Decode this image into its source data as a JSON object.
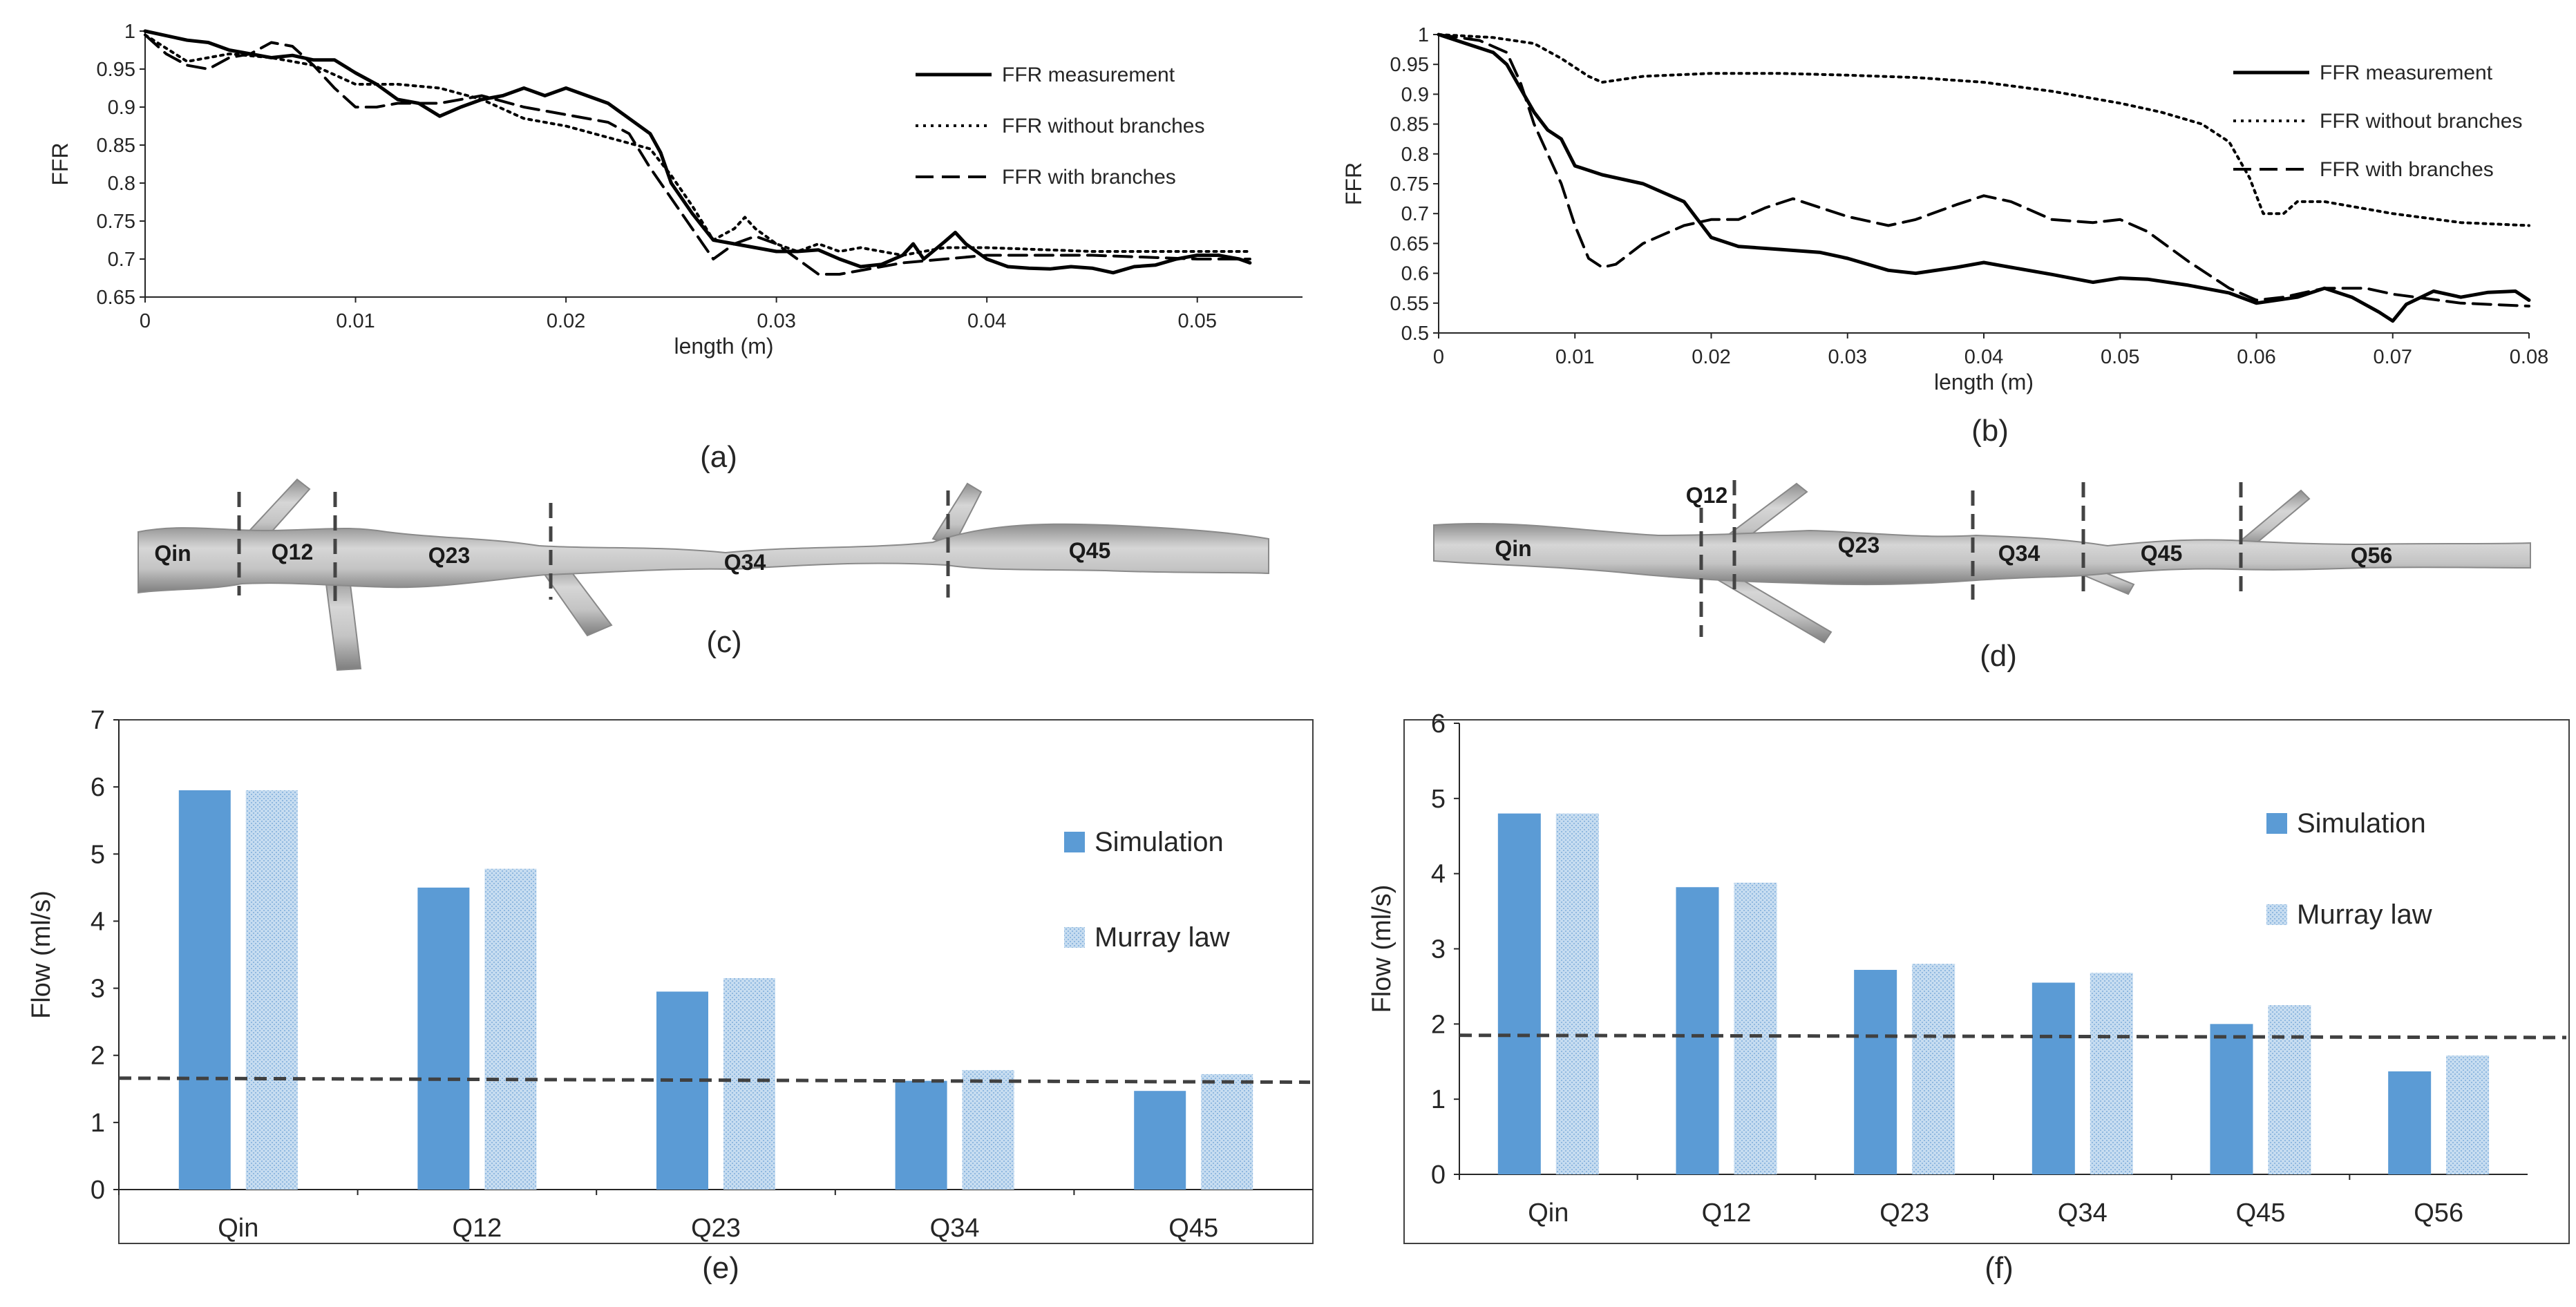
{
  "chart_data": [
    {
      "id": "a",
      "type": "line",
      "panel_label": "(a)",
      "title": "",
      "xlabel": "length (m)",
      "ylabel": "FFR",
      "xlim": [
        0,
        0.055
      ],
      "ylim": [
        0.65,
        1
      ],
      "xticks": [
        "0",
        "0.01",
        "0.02",
        "0.03",
        "0.04",
        "0.05"
      ],
      "yticks": [
        "0.65",
        "0.7",
        "0.75",
        "0.8",
        "0.85",
        "0.9",
        "0.95",
        "1"
      ],
      "grid": false,
      "legend_position": "top-right",
      "series": [
        {
          "name": "FFR measurement",
          "style": "solid",
          "x": [
            0,
            0.002,
            0.003,
            0.004,
            0.005,
            0.006,
            0.007,
            0.008,
            0.009,
            0.01,
            0.011,
            0.012,
            0.013,
            0.014,
            0.015,
            0.016,
            0.017,
            0.018,
            0.019,
            0.02,
            0.021,
            0.022,
            0.023,
            0.024,
            0.0245,
            0.025,
            0.026,
            0.027,
            0.028,
            0.029,
            0.03,
            0.031,
            0.032,
            0.033,
            0.034,
            0.035,
            0.036,
            0.0365,
            0.037,
            0.038,
            0.0385,
            0.039,
            0.04,
            0.041,
            0.042,
            0.043,
            0.044,
            0.045,
            0.046,
            0.047,
            0.048,
            0.049,
            0.05,
            0.051,
            0.052,
            0.0525
          ],
          "y": [
            1,
            0.988,
            0.985,
            0.975,
            0.97,
            0.965,
            0.968,
            0.962,
            0.962,
            0.945,
            0.93,
            0.91,
            0.905,
            0.888,
            0.9,
            0.91,
            0.915,
            0.925,
            0.915,
            0.925,
            0.915,
            0.905,
            0.885,
            0.865,
            0.84,
            0.8,
            0.76,
            0.725,
            0.72,
            0.715,
            0.71,
            0.71,
            0.712,
            0.7,
            0.69,
            0.693,
            0.705,
            0.72,
            0.7,
            0.723,
            0.735,
            0.72,
            0.7,
            0.69,
            0.688,
            0.687,
            0.69,
            0.688,
            0.682,
            0.69,
            0.692,
            0.7,
            0.705,
            0.705,
            0.7,
            0.695
          ]
        },
        {
          "name": "FFR without branches",
          "style": "dotted",
          "x": [
            0,
            0.002,
            0.004,
            0.006,
            0.008,
            0.01,
            0.012,
            0.014,
            0.016,
            0.018,
            0.02,
            0.022,
            0.024,
            0.025,
            0.026,
            0.027,
            0.028,
            0.0285,
            0.029,
            0.03,
            0.031,
            0.032,
            0.033,
            0.034,
            0.035,
            0.036,
            0.037,
            0.038,
            0.04,
            0.045,
            0.05,
            0.0525
          ],
          "y": [
            0.995,
            0.96,
            0.97,
            0.965,
            0.955,
            0.93,
            0.93,
            0.925,
            0.91,
            0.885,
            0.875,
            0.86,
            0.845,
            0.81,
            0.77,
            0.725,
            0.74,
            0.755,
            0.74,
            0.72,
            0.71,
            0.72,
            0.71,
            0.715,
            0.71,
            0.705,
            0.71,
            0.715,
            0.715,
            0.71,
            0.71,
            0.71
          ]
        },
        {
          "name": "FFR with branches",
          "style": "dashed",
          "x": [
            0,
            0.001,
            0.002,
            0.003,
            0.004,
            0.005,
            0.006,
            0.007,
            0.008,
            0.009,
            0.01,
            0.011,
            0.012,
            0.014,
            0.016,
            0.018,
            0.02,
            0.022,
            0.023,
            0.024,
            0.025,
            0.026,
            0.027,
            0.028,
            0.029,
            0.03,
            0.031,
            0.032,
            0.033,
            0.034,
            0.035,
            0.036,
            0.038,
            0.04,
            0.045,
            0.05,
            0.0525
          ],
          "y": [
            0.995,
            0.97,
            0.955,
            0.95,
            0.965,
            0.97,
            0.985,
            0.98,
            0.955,
            0.925,
            0.9,
            0.9,
            0.905,
            0.905,
            0.915,
            0.9,
            0.89,
            0.88,
            0.865,
            0.82,
            0.78,
            0.74,
            0.7,
            0.72,
            0.73,
            0.72,
            0.7,
            0.68,
            0.68,
            0.685,
            0.69,
            0.695,
            0.7,
            0.705,
            0.705,
            0.7,
            0.7
          ]
        }
      ]
    },
    {
      "id": "b",
      "type": "line",
      "panel_label": "(b)",
      "title": "",
      "xlabel": "length (m)",
      "ylabel": "FFR",
      "xlim": [
        0,
        0.08
      ],
      "ylim": [
        0.5,
        1
      ],
      "xticks": [
        "0",
        "0.01",
        "0.02",
        "0.03",
        "0.04",
        "0.05",
        "0.06",
        "0.07",
        "0.08"
      ],
      "yticks": [
        "0.5",
        "0.55",
        "0.6",
        "0.65",
        "0.7",
        "0.75",
        "0.8",
        "0.85",
        "0.9",
        "0.95",
        "1"
      ],
      "grid": false,
      "legend_position": "top-right",
      "series": [
        {
          "name": "FFR measurement",
          "style": "solid",
          "x": [
            0,
            0.002,
            0.004,
            0.005,
            0.006,
            0.007,
            0.008,
            0.009,
            0.01,
            0.012,
            0.015,
            0.018,
            0.02,
            0.022,
            0.025,
            0.028,
            0.03,
            0.033,
            0.035,
            0.038,
            0.04,
            0.042,
            0.045,
            0.048,
            0.05,
            0.052,
            0.055,
            0.058,
            0.06,
            0.063,
            0.065,
            0.067,
            0.069,
            0.07,
            0.071,
            0.073,
            0.075,
            0.077,
            0.079,
            0.08
          ],
          "y": [
            1,
            0.985,
            0.97,
            0.95,
            0.91,
            0.87,
            0.84,
            0.825,
            0.78,
            0.765,
            0.75,
            0.72,
            0.66,
            0.645,
            0.64,
            0.635,
            0.625,
            0.605,
            0.6,
            0.61,
            0.618,
            0.61,
            0.598,
            0.585,
            0.592,
            0.59,
            0.58,
            0.567,
            0.55,
            0.56,
            0.575,
            0.56,
            0.535,
            0.52,
            0.548,
            0.57,
            0.56,
            0.568,
            0.57,
            0.555
          ]
        },
        {
          "name": "FFR without branches",
          "style": "dotted",
          "x": [
            0,
            0.004,
            0.007,
            0.009,
            0.011,
            0.012,
            0.015,
            0.02,
            0.025,
            0.03,
            0.035,
            0.04,
            0.045,
            0.05,
            0.053,
            0.056,
            0.058,
            0.0595,
            0.0605,
            0.062,
            0.063,
            0.065,
            0.07,
            0.075,
            0.08
          ],
          "y": [
            1,
            0.995,
            0.985,
            0.96,
            0.93,
            0.92,
            0.93,
            0.935,
            0.935,
            0.932,
            0.928,
            0.92,
            0.905,
            0.885,
            0.87,
            0.85,
            0.82,
            0.76,
            0.7,
            0.7,
            0.72,
            0.72,
            0.7,
            0.685,
            0.68
          ]
        },
        {
          "name": "FFR with branches",
          "style": "dashed",
          "x": [
            0,
            0.003,
            0.005,
            0.006,
            0.007,
            0.008,
            0.009,
            0.01,
            0.011,
            0.012,
            0.013,
            0.015,
            0.018,
            0.02,
            0.022,
            0.024,
            0.026,
            0.028,
            0.03,
            0.033,
            0.035,
            0.038,
            0.04,
            0.042,
            0.045,
            0.048,
            0.05,
            0.052,
            0.055,
            0.058,
            0.06,
            0.062,
            0.065,
            0.068,
            0.07,
            0.075,
            0.08
          ],
          "y": [
            1,
            0.99,
            0.97,
            0.92,
            0.85,
            0.8,
            0.75,
            0.68,
            0.625,
            0.61,
            0.615,
            0.65,
            0.68,
            0.69,
            0.69,
            0.71,
            0.725,
            0.71,
            0.695,
            0.68,
            0.69,
            0.715,
            0.73,
            0.72,
            0.69,
            0.685,
            0.69,
            0.67,
            0.62,
            0.575,
            0.555,
            0.56,
            0.575,
            0.575,
            0.565,
            0.55,
            0.545
          ]
        }
      ]
    },
    {
      "id": "e",
      "type": "bar",
      "panel_label": "(e)",
      "title": "",
      "xlabel": "",
      "ylabel": "Flow (ml/s)",
      "ylim": [
        0,
        7
      ],
      "yticks": [
        "0",
        "1",
        "2",
        "3",
        "4",
        "5",
        "6",
        "7"
      ],
      "categories": [
        "Qin",
        "Q12",
        "Q23",
        "Q34",
        "Q45"
      ],
      "series": [
        {
          "name": "Simulation",
          "values": [
            5.95,
            4.5,
            2.95,
            1.62,
            1.47
          ]
        },
        {
          "name": "Murray law",
          "values": [
            5.95,
            4.78,
            3.15,
            1.78,
            1.72
          ]
        }
      ],
      "reference_line": {
        "y_start": 1.66,
        "y_end": 1.6,
        "style": "dashed"
      },
      "legend_position": "right"
    },
    {
      "id": "f",
      "type": "bar",
      "panel_label": "(f)",
      "title": "",
      "xlabel": "",
      "ylabel": "Flow (ml/s)",
      "ylim": [
        0,
        6
      ],
      "yticks": [
        "0",
        "1",
        "2",
        "3",
        "4",
        "5",
        "6"
      ],
      "categories": [
        "Qin",
        "Q12",
        "Q23",
        "Q34",
        "Q45",
        "Q56"
      ],
      "series": [
        {
          "name": "Simulation",
          "values": [
            4.8,
            3.82,
            2.72,
            2.55,
            2.0,
            1.37
          ]
        },
        {
          "name": "Murray law",
          "values": [
            4.8,
            3.88,
            2.8,
            2.68,
            2.25,
            1.58
          ]
        }
      ],
      "reference_line": {
        "y_start": 1.85,
        "y_end": 1.82,
        "style": "dashed"
      },
      "legend_position": "right"
    }
  ],
  "vessels": {
    "c": {
      "panel_label": "(c)",
      "labels": [
        "Qin",
        "Q12",
        "Q23",
        "Q34",
        "Q45"
      ]
    },
    "d": {
      "panel_label": "(d)",
      "labels": [
        "Qin",
        "Q12",
        "Q23",
        "Q34",
        "Q45",
        "Q56"
      ]
    }
  },
  "colors": {
    "simulation": "#5b9bd5",
    "murray": "#bdd7ee",
    "line": "#000000",
    "axis": "#262626",
    "vessel": "#b8b8b8"
  }
}
